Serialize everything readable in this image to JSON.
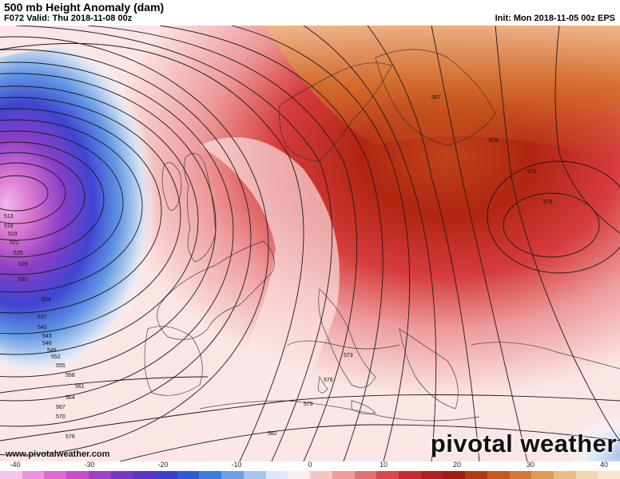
{
  "header": {
    "title": "500 mb Height Anomaly (dam)",
    "valid": "F072 Valid: Thu 2018-11-08 00z",
    "init": "Init: Mon 2018-11-05 00z EPS"
  },
  "watermark": "pivotal weather",
  "url": "www.pivotalweather.com",
  "colorbar": {
    "ticks": [
      "-40",
      "-30",
      "-20",
      "-10",
      "0",
      "10",
      "20",
      "30",
      "40"
    ],
    "colors": [
      "#f7c4ef",
      "#ee93e0",
      "#e168d1",
      "#c94cc9",
      "#a23fc7",
      "#7a37c6",
      "#5a35c8",
      "#3d3fd0",
      "#2e5ad8",
      "#3c7be0",
      "#6aa0e6",
      "#a6c6ef",
      "#dfe8f7",
      "#fbeeee",
      "#f5c6c6",
      "#ee9c9c",
      "#e67070",
      "#dc4848",
      "#cc2a2a",
      "#b51f1f",
      "#a21a12",
      "#b33a10",
      "#c75a1a",
      "#d57a34",
      "#e19a58",
      "#ecbb86",
      "#f3d5b0",
      "#f7e6cf"
    ]
  },
  "contours": {
    "west_labels": [
      "513",
      "516",
      "519",
      "522",
      "525",
      "528",
      "531",
      "534",
      "537",
      "540",
      "543",
      "546",
      "549",
      "552",
      "555",
      "558",
      "561",
      "564",
      "567",
      "570",
      "576"
    ],
    "east_labels": [
      "567",
      "570",
      "573",
      "576",
      "573",
      "576",
      "579",
      "582"
    ]
  }
}
